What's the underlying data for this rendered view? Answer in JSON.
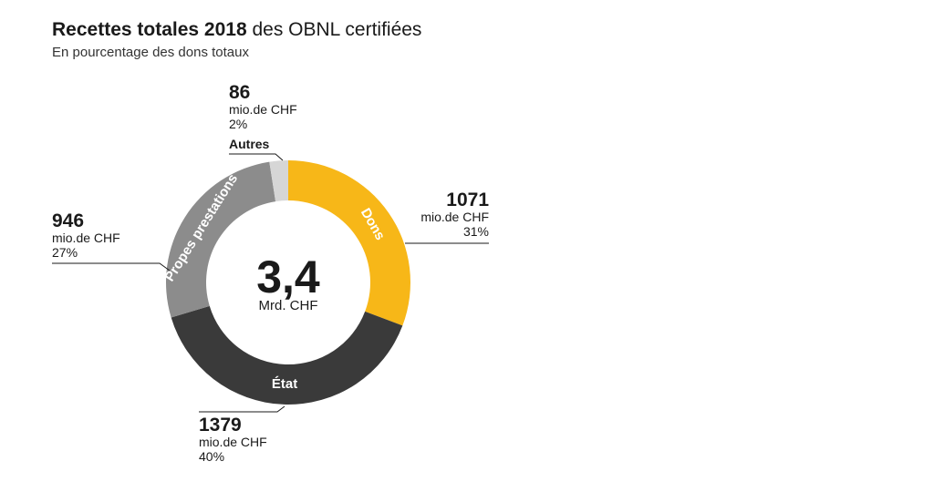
{
  "title": {
    "bold": "Recettes totales 2018",
    "rest": " des OBNL certifiées"
  },
  "subtitle": "En pourcentage des dons totaux",
  "center": {
    "value": "3,4",
    "unit": "Mrd. CHF"
  },
  "unit_label": "mio.de CHF",
  "colors": {
    "Dons": "#f7b718",
    "État": "#3a3a3a",
    "Propes prestations": "#8c8c8c",
    "Autres": "#d6d6d6"
  },
  "chart_data": {
    "type": "pie",
    "title": "Recettes totales 2018 des OBNL certifiées",
    "subtitle": "En pourcentage des dons totaux",
    "total": "3,4 Mrd. CHF",
    "slices": [
      {
        "name": "Dons",
        "value": 1071,
        "percent": "31%"
      },
      {
        "name": "État",
        "value": 1379,
        "percent": "40%"
      },
      {
        "name": "Propes prestations",
        "value": 946,
        "percent": "27%"
      },
      {
        "name": "Autres",
        "value": 86,
        "percent": "2%"
      }
    ]
  }
}
